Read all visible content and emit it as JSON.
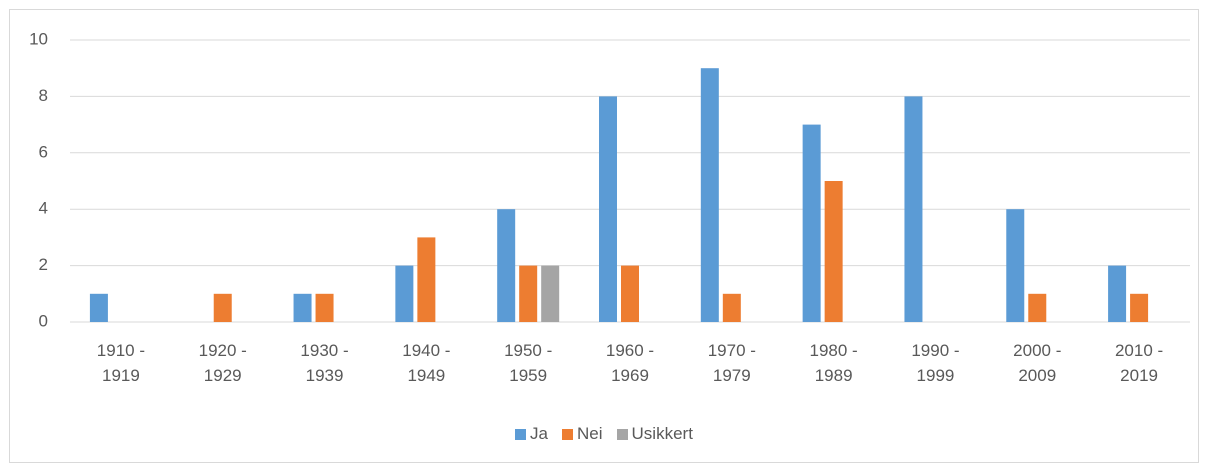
{
  "chart_data": {
    "type": "bar",
    "categories": [
      "1910 - 1919",
      "1920 - 1929",
      "1930 - 1939",
      "1940 - 1949",
      "1950 - 1959",
      "1960 - 1969",
      "1970 - 1979",
      "1980 - 1989",
      "1990 - 1999",
      "2000 - 2009",
      "2010 - 2019"
    ],
    "series": [
      {
        "name": "Ja",
        "color": "#5b9bd5",
        "values": [
          1,
          0,
          1,
          2,
          4,
          8,
          9,
          7,
          8,
          4,
          2
        ]
      },
      {
        "name": "Nei",
        "color": "#ed7d31",
        "values": [
          0,
          1,
          1,
          3,
          2,
          2,
          1,
          5,
          0,
          1,
          1
        ]
      },
      {
        "name": "Usikkert",
        "color": "#a5a5a5",
        "values": [
          0,
          0,
          0,
          0,
          2,
          0,
          0,
          0,
          0,
          0,
          0
        ]
      }
    ],
    "ylim": [
      0,
      10
    ],
    "yticks": [
      0,
      2,
      4,
      6,
      8,
      10
    ],
    "grid": true,
    "legend": "bottom"
  }
}
